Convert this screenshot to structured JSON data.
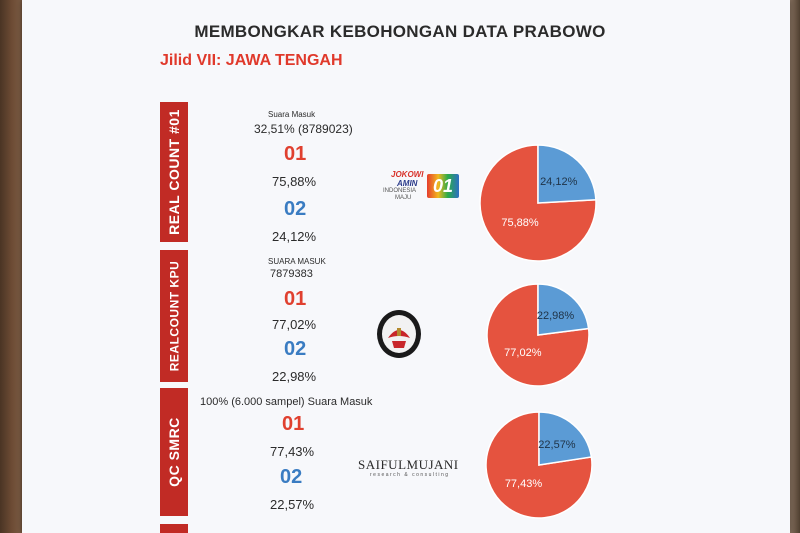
{
  "title": "MEMBONGKAR KEBOHONGAN DATA PRABOWO",
  "subtitle": "Jilid VII: JAWA TENGAH",
  "colors": {
    "label_bg": "#c12b25",
    "c01": "#e0402f",
    "c02": "#3a7cc2",
    "pie01": "#e5533f",
    "pie02": "#5b9bd5"
  },
  "rows": [
    {
      "label": "REAL COUNT #01",
      "caption_small": "Suara Masuk",
      "caption_main": "32,51% (8789023)",
      "c01": "01",
      "v01": "75,88%",
      "c02": "02",
      "v02": "24,12%",
      "logo": {
        "line1": "JOKOWI",
        "line2": "AMIN",
        "line3": "INDONESIA",
        "line4": "MAJU",
        "badge": "01"
      }
    },
    {
      "label": "REALCOUNT KPU",
      "caption_small": "SUARA MASUK",
      "caption_main": "7879383",
      "c01": "01",
      "v01": "77,02%",
      "c02": "02",
      "v02": "22,98%",
      "logo": {
        "name": "kpu-emblem"
      }
    },
    {
      "label": "QC SMRC",
      "caption_main": "100% (6.000 sampel) Suara Masuk",
      "c01": "01",
      "v01": "77,43%",
      "c02": "02",
      "v02": "22,57%",
      "logo": {
        "line1": "SAIFULMUJANI",
        "line2": "research & consulting"
      }
    }
  ],
  "chart_data": [
    {
      "type": "pie",
      "categories": [
        "01",
        "02"
      ],
      "values": [
        75.88,
        24.12
      ],
      "labels": [
        "75,88%",
        "24,12%"
      ]
    },
    {
      "type": "pie",
      "categories": [
        "01",
        "02"
      ],
      "values": [
        77.02,
        22.98
      ],
      "labels": [
        "77,02%",
        "22,98%"
      ]
    },
    {
      "type": "pie",
      "categories": [
        "01",
        "02"
      ],
      "values": [
        77.43,
        22.57
      ],
      "labels": [
        "77,43%",
        "22,57%"
      ]
    }
  ]
}
